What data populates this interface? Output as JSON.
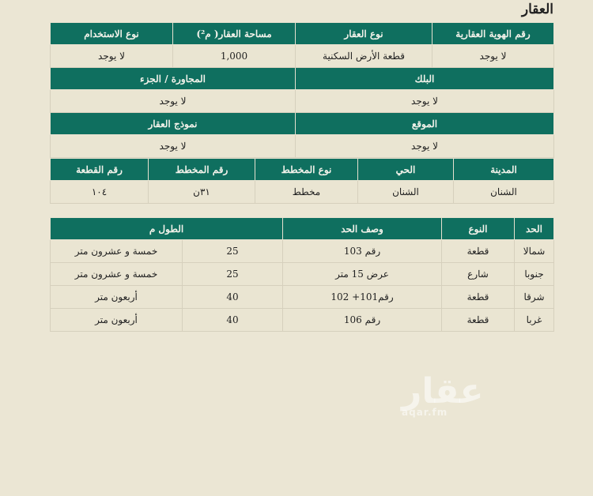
{
  "title": "العقار",
  "t1": {
    "h1": [
      "رقم الهوية العقارية",
      "نوع العقار",
      "مساحة العقار( م²)",
      "نوع الاستخدام"
    ],
    "v1": [
      "لا يوجد",
      "قطعة الأرض السكنية",
      "1,000",
      "لا يوجد"
    ],
    "h2": [
      "البلك",
      "المجاورة / الجزء"
    ],
    "v2": [
      "لا يوجد",
      "لا يوجد"
    ],
    "h3": [
      "الموقع",
      "نموذج العقار"
    ],
    "v3": [
      "لا يوجد",
      "لا يوجد"
    ]
  },
  "t2": {
    "h": [
      "المدينة",
      "الحي",
      "نوع المخطط",
      "رقم المخطط",
      "رقم القطعة"
    ],
    "v": [
      "الشنان",
      "الشنان",
      "مخطط",
      "٣١ن",
      "١٠٤"
    ]
  },
  "t3": {
    "h": [
      "الحد",
      "النوع",
      "وصف الحد",
      "الطول م"
    ],
    "rows": [
      [
        "شمالا",
        "قطعة",
        "رقم 103",
        "25",
        "خمسة و عشرون متر"
      ],
      [
        "جنوبا",
        "شارع",
        "عرض 15 متر",
        "25",
        "خمسة و عشرون متر"
      ],
      [
        "شرقا",
        "قطعة",
        "رقم101+ 102",
        "40",
        "أربعون متر"
      ],
      [
        "غربا",
        "قطعة",
        "رقم 106",
        "40",
        "أربعون متر"
      ]
    ]
  },
  "watermark": {
    "logo": "عقار",
    "url": "aqar.fm"
  }
}
